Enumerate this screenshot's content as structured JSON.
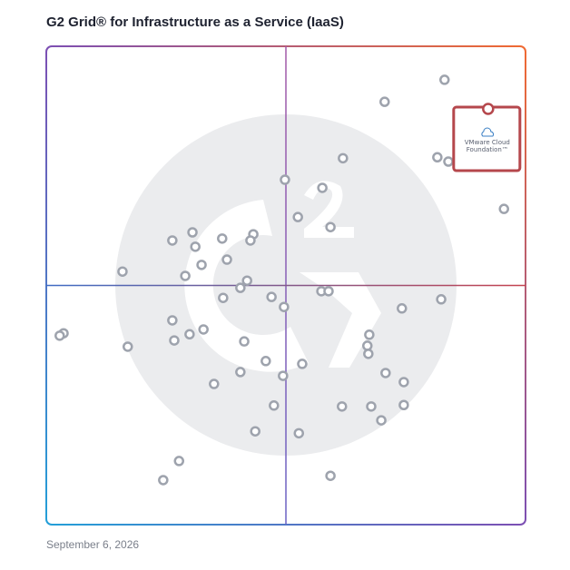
{
  "chart_data": {
    "type": "scatter",
    "title": "G2 Grid® for Infrastructure as a Service (IaaS)",
    "footer": "September 6, 2026",
    "xlim": [
      0,
      100
    ],
    "ylim": [
      0,
      100
    ],
    "quadrant_lines": [
      50,
      50
    ],
    "color": "#9ea3ad",
    "x": [
      83.1,
      70.6,
      61.9,
      81.6,
      83.9,
      95.5,
      49.8,
      57.6,
      52.5,
      59.3,
      30.5,
      26.3,
      31.1,
      36.7,
      43.2,
      42.6,
      37.7,
      32.4,
      15.9,
      29.0,
      41.9,
      40.5,
      36.9,
      47.0,
      49.6,
      57.4,
      58.9,
      82.4,
      74.2,
      26.3,
      32.8,
      29.9,
      26.7,
      3.6,
      2.8,
      17.0,
      41.3,
      67.4,
      67.0,
      67.2,
      45.8,
      53.4,
      40.5,
      49.4,
      70.8,
      74.6,
      35.0,
      47.5,
      61.7,
      67.8,
      74.6,
      69.9,
      43.6,
      52.7,
      27.7,
      24.4,
      59.3
    ],
    "y": [
      93.0,
      88.4,
      76.6,
      76.8,
      75.9,
      66.0,
      72.1,
      70.4,
      64.3,
      62.2,
      61.1,
      59.4,
      58.1,
      59.8,
      60.7,
      59.4,
      55.4,
      54.3,
      52.9,
      52.0,
      51.0,
      49.5,
      47.4,
      47.6,
      45.5,
      48.8,
      48.8,
      47.1,
      45.2,
      42.7,
      40.8,
      39.8,
      38.5,
      40.0,
      39.5,
      37.2,
      38.3,
      39.7,
      37.4,
      35.7,
      34.2,
      33.6,
      31.9,
      31.1,
      31.7,
      29.8,
      29.4,
      24.9,
      24.7,
      24.7,
      25.0,
      21.8,
      19.5,
      19.1,
      13.3,
      9.3,
      10.2
    ],
    "highlight": {
      "label": "VMware Cloud Foundation™",
      "x": 92.2,
      "y": 86.9,
      "color": "#b5474c"
    }
  }
}
